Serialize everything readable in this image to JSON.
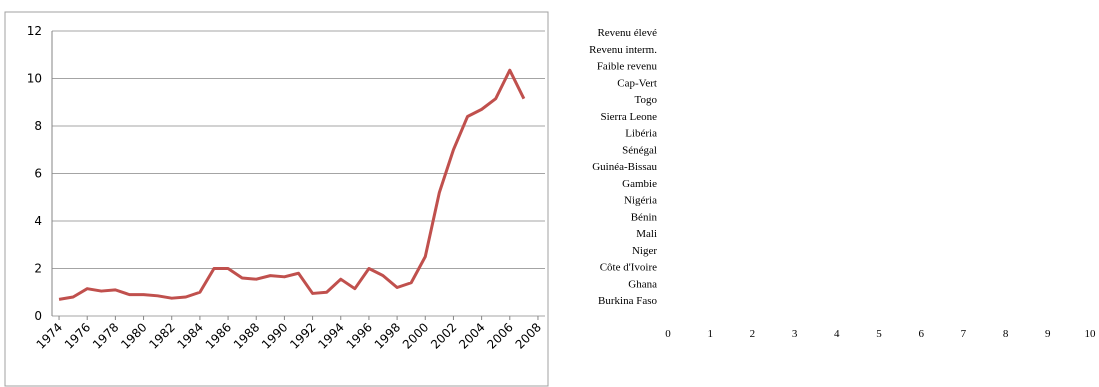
{
  "chart_data": [
    {
      "type": "line",
      "x": [
        1974,
        1975,
        1976,
        1977,
        1978,
        1979,
        1980,
        1981,
        1982,
        1983,
        1984,
        1985,
        1986,
        1987,
        1988,
        1989,
        1990,
        1991,
        1992,
        1993,
        1994,
        1995,
        1996,
        1997,
        1998,
        1999,
        2000,
        2001,
        2002,
        2003,
        2004,
        2005,
        2006,
        2007
      ],
      "series": [
        {
          "color": "#c0504d",
          "values": [
            0.7,
            0.8,
            1.15,
            1.05,
            1.1,
            0.9,
            0.9,
            0.85,
            0.75,
            0.8,
            1.0,
            2.0,
            2.0,
            1.6,
            1.55,
            1.7,
            1.65,
            1.8,
            0.95,
            1.0,
            1.55,
            1.15,
            2.0,
            1.7,
            1.2,
            1.4,
            2.5,
            5.2,
            7.0,
            8.4,
            8.7,
            9.15,
            10.35,
            9.15
          ]
        }
      ],
      "xlim": [
        1973.5,
        2008.5
      ],
      "xticks": [
        1974,
        1976,
        1978,
        1980,
        1982,
        1984,
        1986,
        1988,
        1990,
        1992,
        1994,
        1996,
        1998,
        2000,
        2002,
        2004,
        2006,
        2008
      ],
      "ylim": [
        0,
        12
      ],
      "yticks": [
        0,
        2,
        4,
        6,
        8,
        10,
        12
      ],
      "grid": true
    },
    {
      "type": "bar",
      "categories": [
        "Revenu élevé",
        "Revenu interm.",
        "Faible revenu",
        "Cap-Vert",
        "Togo",
        "Sierra Leone",
        "Libéria",
        "Sénégal",
        "Guinéa-Bissau",
        "Gambie",
        "Nigéria",
        "Bénin",
        "Mali",
        "Niger",
        "Côte d'Ivoire",
        "Ghana",
        "Burkina Faso"
      ],
      "xlim": [
        0,
        10
      ],
      "xticks": [
        0,
        1,
        2,
        3,
        4,
        5,
        6,
        7,
        8,
        9,
        10
      ]
    }
  ]
}
